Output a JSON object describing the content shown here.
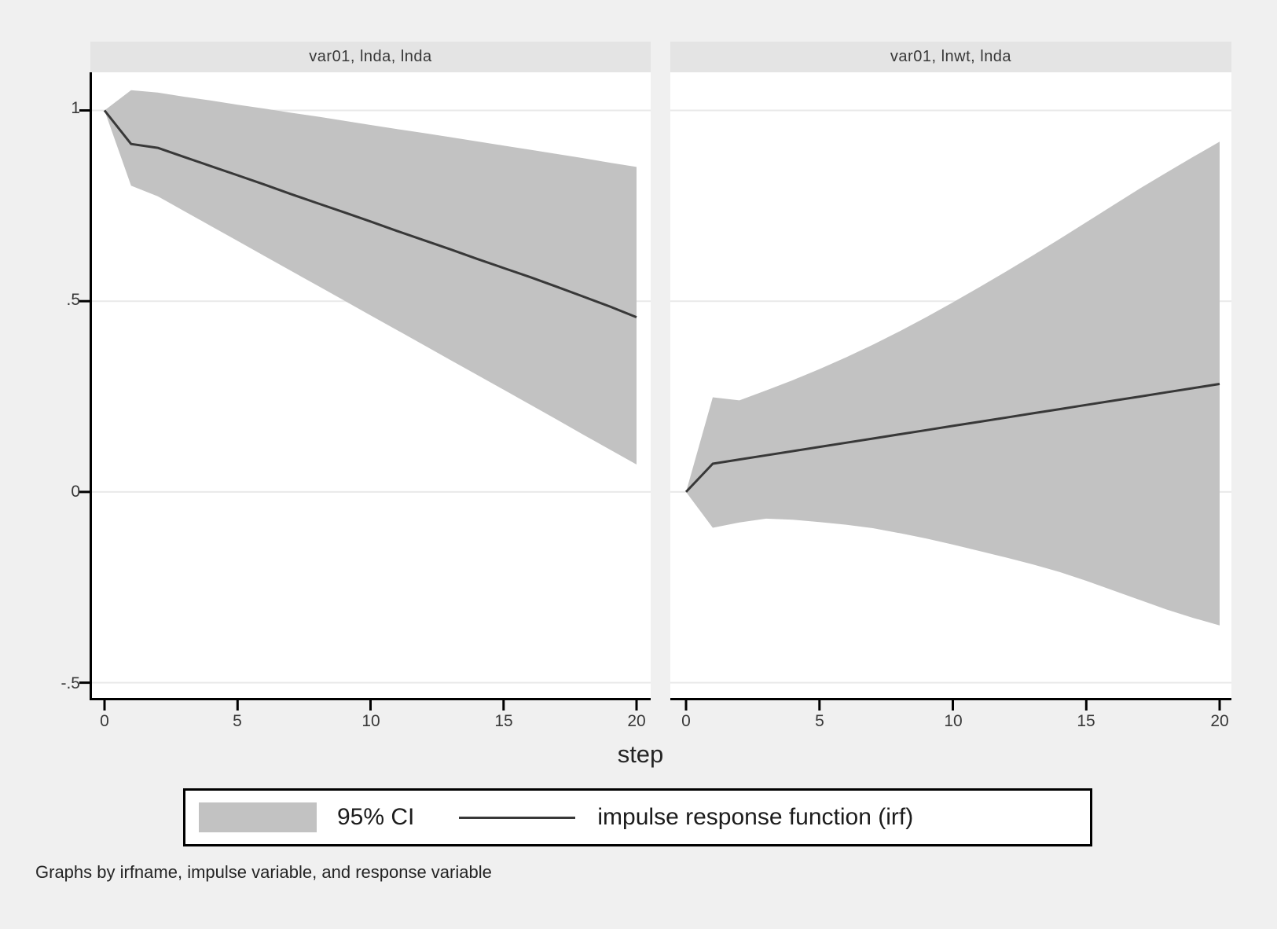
{
  "figure": {
    "xlabel": "step",
    "footer": "Graphs by irfname, impulse variable, and response variable",
    "legend": {
      "ci_label": "95% CI",
      "irf_label": "impulse response function (irf)"
    },
    "colors": {
      "band": "#c2c2c2",
      "irf_line": "#383838",
      "axis": "#000000",
      "gridline": "#e9e9e9",
      "plot_bg": "#ffffff",
      "canvas_bg": "#f0f0f0",
      "title_strip_bg": "#e4e4e4"
    }
  },
  "chart_data": [
    {
      "type": "area",
      "title": "var01, lnda, lnda",
      "xlabel": "step",
      "ylabel": "",
      "xlim": [
        0,
        20
      ],
      "ylim": [
        -0.54,
        1.1
      ],
      "grid": true,
      "legend_position": "bottom",
      "x_ticks": [
        0,
        5,
        10,
        15,
        20
      ],
      "x_tick_labels": [
        "0",
        "5",
        "10",
        "15",
        "20"
      ],
      "y_ticks": [
        1,
        0.5,
        0,
        -0.5
      ],
      "y_tick_labels": [
        "1",
        ".5",
        "0",
        "-.5"
      ],
      "x": [
        0,
        1,
        2,
        3,
        4,
        5,
        6,
        7,
        8,
        9,
        10,
        11,
        12,
        13,
        14,
        15,
        16,
        17,
        18,
        19,
        20
      ],
      "series": [
        {
          "name": "95% CI upper bound",
          "values": [
            1.0,
            1.053,
            1.047,
            1.036,
            1.026,
            1.015,
            1.005,
            0.994,
            0.984,
            0.973,
            0.962,
            0.951,
            0.941,
            0.93,
            0.919,
            0.908,
            0.897,
            0.886,
            0.875,
            0.863,
            0.852
          ]
        },
        {
          "name": "95% CI lower bound",
          "values": [
            1.0,
            0.803,
            0.775,
            0.736,
            0.697,
            0.658,
            0.619,
            0.58,
            0.541,
            0.502,
            0.463,
            0.424,
            0.385,
            0.346,
            0.307,
            0.268,
            0.229,
            0.19,
            0.15,
            0.111,
            0.072
          ]
        },
        {
          "name": "impulse response function (irf)",
          "values": [
            1.0,
            0.912,
            0.902,
            0.878,
            0.854,
            0.83,
            0.806,
            0.781,
            0.757,
            0.733,
            0.709,
            0.684,
            0.66,
            0.636,
            0.611,
            0.587,
            0.563,
            0.538,
            0.512,
            0.486,
            0.458
          ]
        }
      ]
    },
    {
      "type": "area",
      "title": "var01, lnwt, lnda",
      "xlabel": "step",
      "ylabel": "",
      "xlim": [
        0,
        20
      ],
      "ylim": [
        -0.54,
        1.1
      ],
      "grid": true,
      "legend_position": "bottom",
      "x_ticks": [
        0,
        5,
        10,
        15,
        20
      ],
      "x_tick_labels": [
        "0",
        "5",
        "10",
        "15",
        "20"
      ],
      "y_ticks": [
        1,
        0.5,
        0,
        -0.5
      ],
      "y_tick_labels": [
        "1",
        ".5",
        "0",
        "-.5"
      ],
      "x": [
        0,
        1,
        2,
        3,
        4,
        5,
        6,
        7,
        8,
        9,
        10,
        11,
        12,
        13,
        14,
        15,
        16,
        17,
        18,
        19,
        20
      ],
      "series": [
        {
          "name": "95% CI upper bound",
          "values": [
            0.0,
            0.248,
            0.24,
            0.266,
            0.293,
            0.322,
            0.353,
            0.386,
            0.421,
            0.458,
            0.497,
            0.537,
            0.578,
            0.62,
            0.663,
            0.707,
            0.751,
            0.795,
            0.837,
            0.878,
            0.918
          ]
        },
        {
          "name": "95% CI lower bound",
          "values": [
            0.0,
            -0.094,
            -0.08,
            -0.07,
            -0.073,
            -0.079,
            -0.086,
            -0.095,
            -0.108,
            -0.122,
            -0.138,
            -0.155,
            -0.172,
            -0.19,
            -0.21,
            -0.233,
            -0.258,
            -0.283,
            -0.308,
            -0.33,
            -0.35
          ]
        },
        {
          "name": "impulse response function (irf)",
          "values": [
            0.0,
            0.074,
            0.085,
            0.096,
            0.107,
            0.118,
            0.129,
            0.14,
            0.151,
            0.162,
            0.173,
            0.184,
            0.195,
            0.206,
            0.217,
            0.228,
            0.239,
            0.25,
            0.261,
            0.272,
            0.283
          ]
        }
      ]
    }
  ]
}
